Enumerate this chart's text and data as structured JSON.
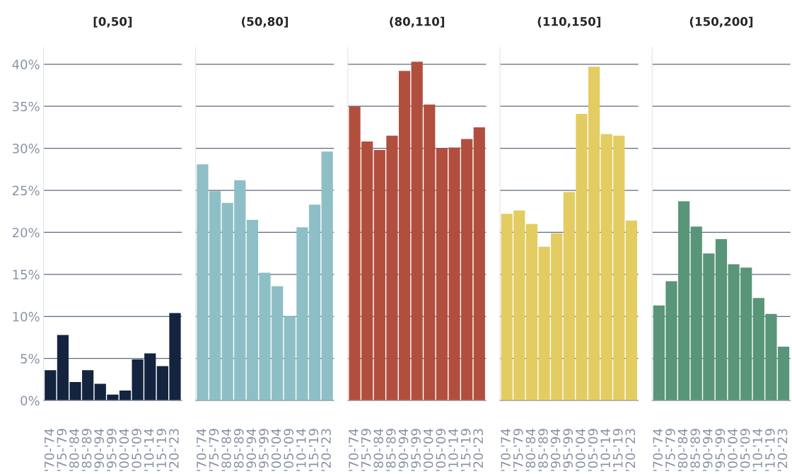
{
  "chart_data": [
    {
      "type": "bar",
      "title": "[0,50]",
      "categories": [
        "'70-'74",
        "'75-'79",
        "'80-'84",
        "'85-'89",
        "'90-'94",
        "'95-'99",
        "'00-'04",
        "'05-'09",
        "'10-'14",
        "'15-'19",
        "'20-'23"
      ],
      "values": [
        3.6,
        7.8,
        2.2,
        3.6,
        2.0,
        0.7,
        1.2,
        4.9,
        5.6,
        4.1,
        10.4
      ],
      "color": "#14243f",
      "ylim": [
        0,
        42
      ],
      "yticks": [
        {
          "value": 0,
          "label": "0%"
        },
        {
          "value": 5,
          "label": "5%"
        },
        {
          "value": 10,
          "label": "10%"
        },
        {
          "value": 15,
          "label": "15%"
        },
        {
          "value": 20,
          "label": "20%"
        },
        {
          "value": 25,
          "label": "25%"
        },
        {
          "value": 30,
          "label": "30%"
        },
        {
          "value": 35,
          "label": "35%"
        },
        {
          "value": 40,
          "label": "40%"
        }
      ],
      "grid": "y"
    },
    {
      "type": "bar",
      "title": "(50,80]",
      "categories": [
        "'70-'74",
        "'75-'79",
        "'80-'84",
        "'85-'89",
        "'90-'94",
        "'95-'99",
        "'00-'04",
        "'05-'09",
        "'10-'14",
        "'15-'19",
        "'20-'23"
      ],
      "values": [
        28.1,
        24.9,
        23.5,
        26.2,
        21.5,
        15.2,
        13.6,
        10.0,
        20.6,
        23.3,
        29.6
      ],
      "color": "#8ebfc6",
      "ylim": [
        0,
        42
      ],
      "yticks": [
        0,
        5,
        10,
        15,
        20,
        25,
        30,
        35,
        40
      ],
      "grid": "y",
      "tick_labels": "x"
    },
    {
      "type": "bar",
      "title": "(80,110]",
      "categories": [
        "'70-'74",
        "'75-'79",
        "'80-'84",
        "'85-'89",
        "'90-'94",
        "'95-'99",
        "'00-'04",
        "'05-'09",
        "'10-'14",
        "'15-'19",
        "'20-'23"
      ],
      "values": [
        35.0,
        30.8,
        29.8,
        31.5,
        39.2,
        40.3,
        35.2,
        30.0,
        30.1,
        31.1,
        32.5
      ],
      "color": "#b24e3e",
      "ylim": [
        0,
        42
      ],
      "yticks": [
        0,
        5,
        10,
        15,
        20,
        25,
        30,
        35,
        40
      ],
      "grid": "y",
      "tick_labels": "x"
    },
    {
      "type": "bar",
      "title": "(110,150]",
      "categories": [
        "'70-'74",
        "'75-'79",
        "'80-'84",
        "'85-'89",
        "'90-'94",
        "'95-'99",
        "'00-'04",
        "'05-'09",
        "'10-'14",
        "'15-'19",
        "'20-'23"
      ],
      "values": [
        22.2,
        22.6,
        21.0,
        18.3,
        19.9,
        24.8,
        34.1,
        39.7,
        31.7,
        31.5,
        21.4
      ],
      "color": "#e3cc62",
      "ylim": [
        0,
        42
      ],
      "yticks": [
        0,
        5,
        10,
        15,
        20,
        25,
        30,
        35,
        40
      ],
      "grid": "y",
      "tick_labels": "x"
    },
    {
      "type": "bar",
      "title": "(150,200]",
      "categories": [
        "'70-'74",
        "'75-'79",
        "'80-'84",
        "'85-'89",
        "'90-'94",
        "'95-'99",
        "'00-'04",
        "'05-'09",
        "'10-'14",
        "'15-'19",
        "'20-'23"
      ],
      "values": [
        11.3,
        14.2,
        23.7,
        20.7,
        17.5,
        19.2,
        16.2,
        15.8,
        12.2,
        10.3,
        6.4
      ],
      "color": "#589579",
      "ylim": [
        0,
        42
      ],
      "yticks": [
        0,
        5,
        10,
        15,
        20,
        25,
        30,
        35,
        40
      ],
      "grid": "y",
      "tick_labels": "x"
    }
  ]
}
